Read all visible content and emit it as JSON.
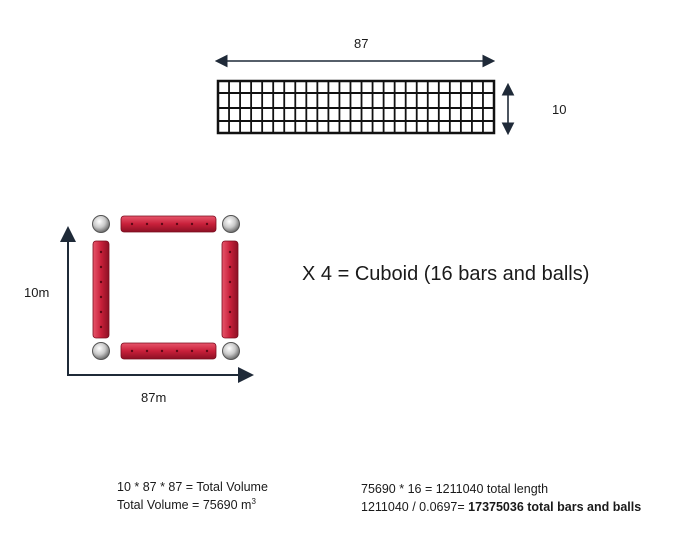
{
  "top_figure": {
    "width_label": "87",
    "height_label": "10"
  },
  "square_figure": {
    "y_label": "10m",
    "x_label": "87m"
  },
  "multiplier_text": "X 4 = Cuboid (16 bars and balls)",
  "calc_left": {
    "line1": "10 * 87 * 87 = Total Volume",
    "line2_prefix": "Total Volume = 75690 m",
    "line2_sup": "3"
  },
  "calc_right": {
    "line1": "75690 * 16 = 1211040 total length",
    "line2_prefix": "1211040 / 0.0697= ",
    "line2_bold": "17375036 total bars and balls"
  },
  "colors": {
    "bar_red": "#c8203a",
    "bar_dark": "#8c1024",
    "ball_silver": "#c9c9c9",
    "arrow": "#1f2a38"
  }
}
